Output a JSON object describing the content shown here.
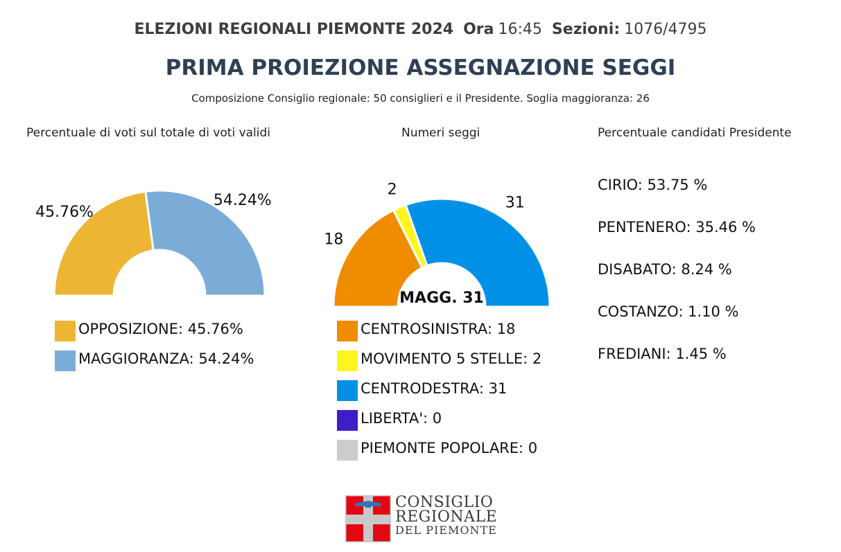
{
  "header": {
    "election": "ELEZIONI REGIONALI PIEMONTE 2024",
    "ora_label": "Ora",
    "ora_value": "16:45",
    "sezioni_label": "Sezioni:",
    "sezioni_value": "1076/4795"
  },
  "title": "PRIMA PROIEZIONE ASSEGNAZIONE SEGGI",
  "subtitle": "Composizione Consiglio regionale: 50 consiglieri e il Presidente. Soglia maggioranza: 26",
  "columns": {
    "votes_title": "Percentuale di voti sul totale di voti validi",
    "seats_title": "Numeri seggi",
    "candidates_title": "Percentuale candidati Presidente"
  },
  "chart_data": [
    {
      "type": "pie",
      "subtype": "half-donut",
      "title": "Percentuale di voti sul totale di voti validi",
      "slices": [
        {
          "label": "OPPOSIZIONE",
          "value": 45.76,
          "label_text": "45.76%",
          "legend_text": "OPPOSIZIONE: 45.76%",
          "color": "#EDB534"
        },
        {
          "label": "MAGGIORANZA",
          "value": 54.24,
          "label_text": "54.24%",
          "legend_text": "MAGGIORANZA: 54.24%",
          "color": "#7BACD8"
        }
      ]
    },
    {
      "type": "pie",
      "subtype": "half-donut",
      "title": "Numeri seggi",
      "center_label": "MAGG. 31",
      "slices": [
        {
          "label": "CENTROSINISTRA",
          "value": 18,
          "label_text": "18",
          "legend_text": "CENTROSINISTRA: 18",
          "color": "#F08C00"
        },
        {
          "label": "MOVIMENTO 5 STELLE",
          "value": 2,
          "label_text": "2",
          "legend_text": "MOVIMENTO 5 STELLE: 2",
          "color": "#FFF51E"
        },
        {
          "label": "CENTRODESTRA",
          "value": 31,
          "label_text": "31",
          "legend_text": "CENTRODESTRA: 31",
          "color": "#0091E6"
        },
        {
          "label": "LIBERTA'",
          "value": 0,
          "label_text": "",
          "legend_text": "LIBERTA': 0",
          "color": "#3F1EC8"
        },
        {
          "label": "PIEMONTE POPOLARE",
          "value": 0,
          "label_text": "",
          "legend_text": "PIEMONTE POPOLARE: 0",
          "color": "#CCCCCC"
        }
      ]
    }
  ],
  "candidates": [
    {
      "name": "CIRIO",
      "value": 53.75,
      "text": "CIRIO: 53.75 %"
    },
    {
      "name": "PENTENERO",
      "value": 35.46,
      "text": "PENTENERO: 35.46 %"
    },
    {
      "name": "DISABATO",
      "value": 8.24,
      "text": "DISABATO: 8.24 %"
    },
    {
      "name": "COSTANZO",
      "value": 1.1,
      "text": "COSTANZO: 1.10 %"
    },
    {
      "name": "FREDIANI",
      "value": 1.45,
      "text": "FREDIANI: 1.45 %"
    }
  ],
  "logo": {
    "line1": "CONSIGLIO",
    "line2": "REGIONALE",
    "line3": "DEL PIEMONTE",
    "colors": {
      "red": "#E30613",
      "blue": "#2C77B5",
      "gray": "#C8C8C8"
    }
  }
}
